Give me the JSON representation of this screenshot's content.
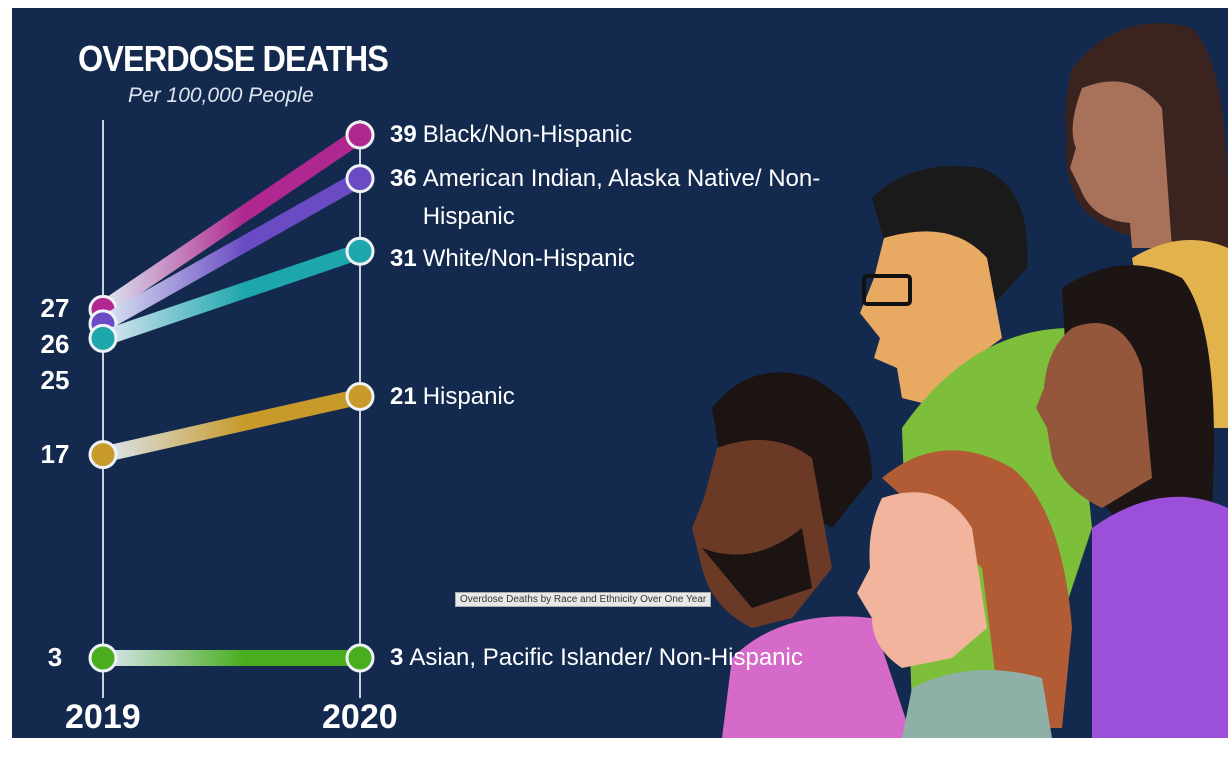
{
  "chart_data": {
    "type": "line",
    "title": "OVERDOSE DEATHS",
    "subtitle": "Per 100,000 People",
    "caption": "Overdose Deaths by Race and Ethnicity Over One Year",
    "categories": [
      "2019",
      "2020"
    ],
    "series": [
      {
        "name": "Black/Non-Hispanic",
        "color": "#b0278f",
        "values": [
          27,
          39
        ]
      },
      {
        "name": "American Indian, Alaska Native/ Non-Hispanic",
        "color": "#6b4bc4",
        "values": [
          26,
          36
        ]
      },
      {
        "name": "White/Non-Hispanic",
        "color": "#1ea6ad",
        "values": [
          25,
          31
        ]
      },
      {
        "name": "Hispanic",
        "color": "#c89a2a",
        "values": [
          17,
          21
        ]
      },
      {
        "name": "Asian, Pacific Islander/ Non-Hispanic",
        "color": "#49ad1e",
        "values": [
          3,
          3
        ]
      }
    ]
  }
}
